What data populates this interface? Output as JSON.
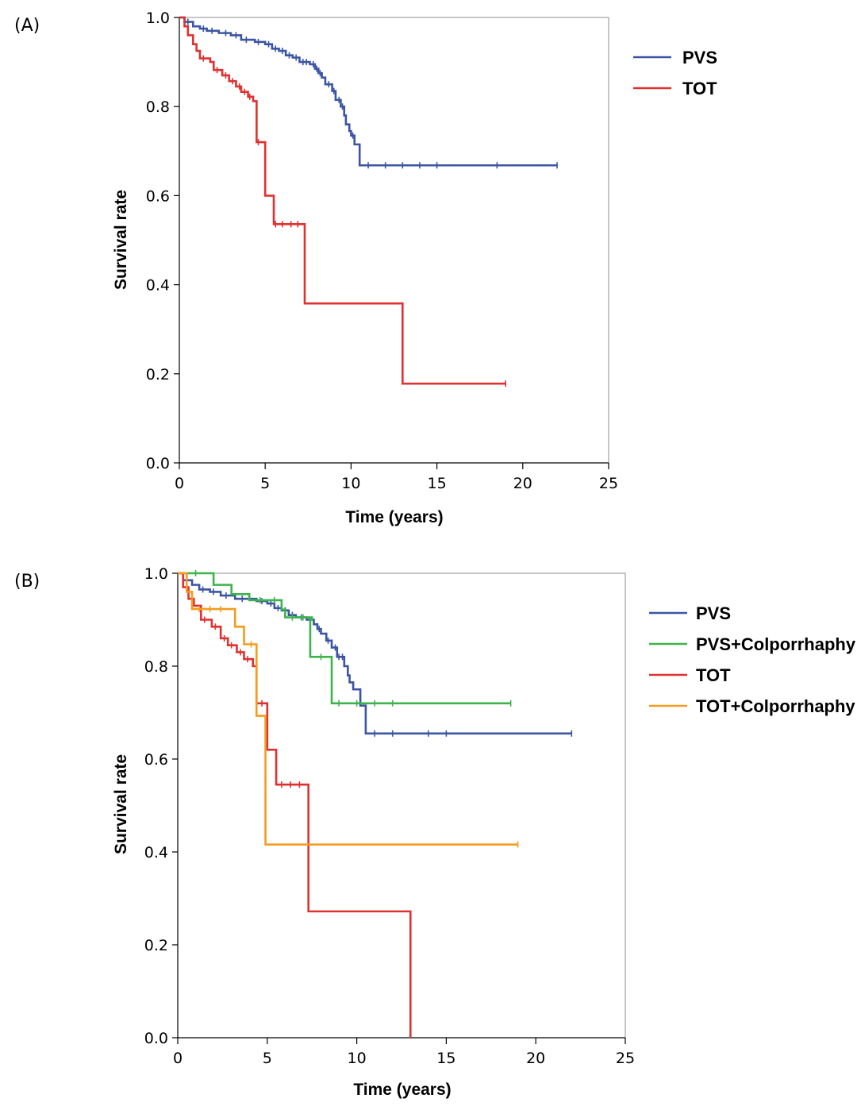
{
  "chart_data": [
    {
      "type": "line",
      "panel_label": "(A)",
      "xlabel": "Time (years)",
      "ylabel": "Survival rate",
      "xlim": [
        0,
        25
      ],
      "ylim": [
        0,
        1
      ],
      "xticks": [
        "0",
        "5",
        "10",
        "15",
        "20",
        "25"
      ],
      "yticks": [
        "0.0",
        "0.2",
        "0.4",
        "0.6",
        "0.8",
        "1.0"
      ],
      "legend_position": "top-right-outside",
      "series": [
        {
          "name": "PVS",
          "color": "#3b55a4",
          "steps": [
            [
              0,
              1.0
            ],
            [
              0.3,
              0.99
            ],
            [
              0.8,
              0.98
            ],
            [
              1.2,
              0.975
            ],
            [
              1.6,
              0.97
            ],
            [
              2.3,
              0.965
            ],
            [
              3.0,
              0.96
            ],
            [
              3.6,
              0.95
            ],
            [
              4.4,
              0.945
            ],
            [
              5.0,
              0.94
            ],
            [
              5.4,
              0.93
            ],
            [
              5.8,
              0.925
            ],
            [
              6.2,
              0.915
            ],
            [
              6.6,
              0.91
            ],
            [
              7.0,
              0.9
            ],
            [
              7.6,
              0.895
            ],
            [
              7.9,
              0.885
            ],
            [
              8.1,
              0.875
            ],
            [
              8.3,
              0.865
            ],
            [
              8.5,
              0.85
            ],
            [
              8.9,
              0.835
            ],
            [
              9.1,
              0.815
            ],
            [
              9.4,
              0.8
            ],
            [
              9.6,
              0.78
            ],
            [
              9.7,
              0.76
            ],
            [
              9.9,
              0.745
            ],
            [
              10.0,
              0.735
            ],
            [
              10.2,
              0.715
            ],
            [
              10.5,
              0.668
            ],
            [
              22.0,
              0.668
            ]
          ],
          "censors": [
            [
              0.5,
              0.99
            ],
            [
              1.4,
              0.975
            ],
            [
              1.9,
              0.97
            ],
            [
              2.7,
              0.965
            ],
            [
              3.3,
              0.96
            ],
            [
              3.9,
              0.95
            ],
            [
              4.6,
              0.945
            ],
            [
              5.2,
              0.94
            ],
            [
              5.6,
              0.93
            ],
            [
              6.0,
              0.925
            ],
            [
              6.4,
              0.915
            ],
            [
              6.8,
              0.91
            ],
            [
              7.2,
              0.9
            ],
            [
              7.4,
              0.9
            ],
            [
              7.8,
              0.895
            ],
            [
              8.0,
              0.885
            ],
            [
              8.2,
              0.875
            ],
            [
              8.7,
              0.85
            ],
            [
              9.0,
              0.835
            ],
            [
              9.3,
              0.815
            ],
            [
              9.5,
              0.8
            ],
            [
              10.1,
              0.735
            ],
            [
              11.0,
              0.668
            ],
            [
              12.0,
              0.668
            ],
            [
              13.0,
              0.668
            ],
            [
              14.0,
              0.668
            ],
            [
              15.0,
              0.668
            ],
            [
              18.5,
              0.668
            ],
            [
              22.0,
              0.668
            ]
          ]
        },
        {
          "name": "TOT",
          "color": "#e03131",
          "steps": [
            [
              0,
              1.0
            ],
            [
              0.3,
              0.98
            ],
            [
              0.5,
              0.96
            ],
            [
              0.8,
              0.94
            ],
            [
              1.0,
              0.925
            ],
            [
              1.2,
              0.908
            ],
            [
              1.8,
              0.9
            ],
            [
              2.0,
              0.882
            ],
            [
              2.5,
              0.87
            ],
            [
              2.9,
              0.857
            ],
            [
              3.3,
              0.845
            ],
            [
              3.6,
              0.833
            ],
            [
              4.0,
              0.822
            ],
            [
              4.3,
              0.812
            ],
            [
              4.5,
              0.72
            ],
            [
              4.9,
              0.72
            ],
            [
              5.0,
              0.6
            ],
            [
              5.4,
              0.6
            ],
            [
              5.5,
              0.536
            ],
            [
              7.3,
              0.358
            ],
            [
              13.0,
              0.178
            ],
            [
              19.0,
              0.178
            ]
          ],
          "censors": [
            [
              1.4,
              0.908
            ],
            [
              2.2,
              0.882
            ],
            [
              2.7,
              0.87
            ],
            [
              3.1,
              0.857
            ],
            [
              3.5,
              0.845
            ],
            [
              3.8,
              0.833
            ],
            [
              4.1,
              0.822
            ],
            [
              4.6,
              0.72
            ],
            [
              5.6,
              0.536
            ],
            [
              6.0,
              0.536
            ],
            [
              6.5,
              0.536
            ],
            [
              6.9,
              0.536
            ],
            [
              19.0,
              0.178
            ]
          ]
        }
      ]
    },
    {
      "type": "line",
      "panel_label": "(B)",
      "xlabel": "Time (years)",
      "ylabel": "Survival rate",
      "xlim": [
        0,
        25
      ],
      "ylim": [
        0,
        1
      ],
      "xticks": [
        "0",
        "5",
        "10",
        "15",
        "20",
        "25"
      ],
      "yticks": [
        "0.0",
        "0.2",
        "0.4",
        "0.6",
        "0.8",
        "1.0"
      ],
      "legend_position": "top-right-outside",
      "series": [
        {
          "name": "PVS",
          "color": "#3b55a4",
          "steps": [
            [
              0,
              1.0
            ],
            [
              0.3,
              0.985
            ],
            [
              0.8,
              0.975
            ],
            [
              1.2,
              0.965
            ],
            [
              1.8,
              0.96
            ],
            [
              2.4,
              0.952
            ],
            [
              3.2,
              0.945
            ],
            [
              4.4,
              0.94
            ],
            [
              5.0,
              0.935
            ],
            [
              5.4,
              0.925
            ],
            [
              5.8,
              0.92
            ],
            [
              6.2,
              0.91
            ],
            [
              6.6,
              0.905
            ],
            [
              7.2,
              0.9
            ],
            [
              7.6,
              0.89
            ],
            [
              7.8,
              0.88
            ],
            [
              8.0,
              0.87
            ],
            [
              8.3,
              0.855
            ],
            [
              8.6,
              0.84
            ],
            [
              8.9,
              0.82
            ],
            [
              9.3,
              0.8
            ],
            [
              9.5,
              0.78
            ],
            [
              9.6,
              0.765
            ],
            [
              9.8,
              0.75
            ],
            [
              10.2,
              0.715
            ],
            [
              10.5,
              0.655
            ],
            [
              22.0,
              0.655
            ]
          ],
          "censors": [
            [
              0.5,
              0.985
            ],
            [
              1.4,
              0.965
            ],
            [
              2.0,
              0.96
            ],
            [
              2.7,
              0.952
            ],
            [
              3.6,
              0.945
            ],
            [
              4.7,
              0.94
            ],
            [
              5.2,
              0.935
            ],
            [
              5.6,
              0.925
            ],
            [
              6.0,
              0.92
            ],
            [
              6.4,
              0.91
            ],
            [
              6.9,
              0.905
            ],
            [
              7.4,
              0.9
            ],
            [
              7.9,
              0.88
            ],
            [
              8.4,
              0.855
            ],
            [
              8.8,
              0.84
            ],
            [
              9.0,
              0.82
            ],
            [
              9.2,
              0.82
            ],
            [
              11.0,
              0.655
            ],
            [
              12.0,
              0.655
            ],
            [
              14.0,
              0.655
            ],
            [
              15.0,
              0.655
            ],
            [
              22.0,
              0.655
            ]
          ]
        },
        {
          "name": "PVS+Colporrhaphy",
          "color": "#3cb44b",
          "steps": [
            [
              0,
              1.0
            ],
            [
              2.0,
              0.975
            ],
            [
              3.0,
              0.955
            ],
            [
              4.0,
              0.942
            ],
            [
              5.8,
              0.922
            ],
            [
              6.0,
              0.905
            ],
            [
              7.5,
              0.9
            ],
            [
              7.4,
              0.82
            ],
            [
              8.6,
              0.72
            ],
            [
              18.6,
              0.72
            ]
          ],
          "censors": [
            [
              1.0,
              1.0
            ],
            [
              4.6,
              0.942
            ],
            [
              5.4,
              0.942
            ],
            [
              6.4,
              0.905
            ],
            [
              7.0,
              0.905
            ],
            [
              8.0,
              0.82
            ],
            [
              9.0,
              0.72
            ],
            [
              10.0,
              0.72
            ],
            [
              11.0,
              0.72
            ],
            [
              12.0,
              0.72
            ],
            [
              18.6,
              0.72
            ]
          ]
        },
        {
          "name": "TOT",
          "color": "#e03131",
          "steps": [
            [
              0,
              1.0
            ],
            [
              0.3,
              0.97
            ],
            [
              0.6,
              0.945
            ],
            [
              0.9,
              0.93
            ],
            [
              1.3,
              0.9
            ],
            [
              1.9,
              0.885
            ],
            [
              2.4,
              0.86
            ],
            [
              2.8,
              0.845
            ],
            [
              3.3,
              0.83
            ],
            [
              3.7,
              0.815
            ],
            [
              4.2,
              0.8
            ],
            [
              4.4,
              0.72
            ],
            [
              5.0,
              0.72
            ],
            [
              5.0,
              0.62
            ],
            [
              5.5,
              0.62
            ],
            [
              5.5,
              0.545
            ],
            [
              7.3,
              0.545
            ],
            [
              7.3,
              0.272
            ],
            [
              13.0,
              0.272
            ],
            [
              13.0,
              0.0
            ]
          ],
          "censors": [
            [
              1.5,
              0.9
            ],
            [
              2.1,
              0.885
            ],
            [
              2.6,
              0.86
            ],
            [
              3.0,
              0.845
            ],
            [
              3.5,
              0.83
            ],
            [
              3.9,
              0.815
            ],
            [
              4.7,
              0.72
            ],
            [
              5.8,
              0.545
            ],
            [
              6.3,
              0.545
            ],
            [
              6.8,
              0.545
            ]
          ]
        },
        {
          "name": "TOT+Colporrhaphy",
          "color": "#f39c1f",
          "steps": [
            [
              0,
              1.0
            ],
            [
              0.5,
              0.96
            ],
            [
              0.8,
              0.923
            ],
            [
              3.2,
              0.923
            ],
            [
              3.2,
              0.885
            ],
            [
              3.7,
              0.885
            ],
            [
              3.7,
              0.847
            ],
            [
              4.4,
              0.847
            ],
            [
              4.4,
              0.693
            ],
            [
              4.9,
              0.693
            ],
            [
              4.9,
              0.416
            ],
            [
              19.0,
              0.416
            ]
          ],
          "censors": [
            [
              1.2,
              0.923
            ],
            [
              1.8,
              0.923
            ],
            [
              2.4,
              0.923
            ],
            [
              4.1,
              0.847
            ],
            [
              19.0,
              0.416
            ]
          ]
        }
      ]
    }
  ]
}
